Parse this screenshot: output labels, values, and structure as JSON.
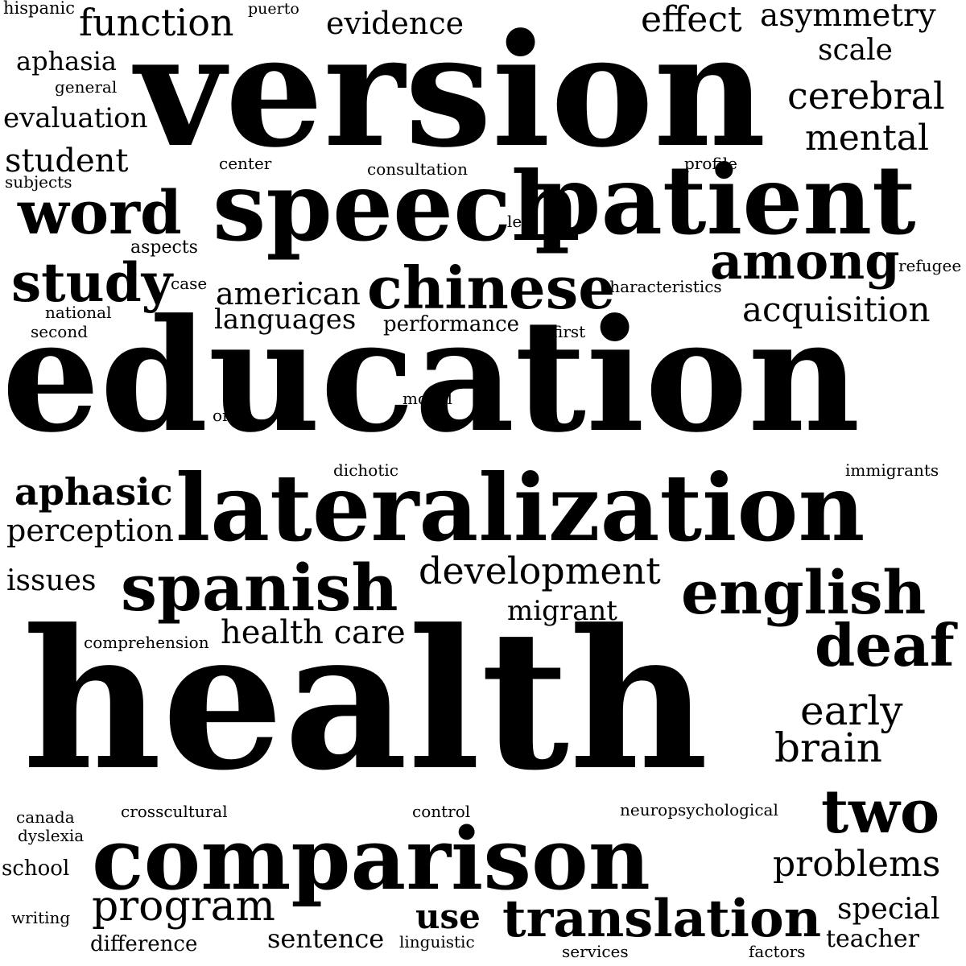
{
  "cloud": {
    "background": "#ffffff",
    "text_color": "#000000",
    "words": {
      "hispanic": "hispanic",
      "function": "function",
      "puerto": "puerto",
      "evidence": "evidence",
      "effect": "effect",
      "asymmetry": "asymmetry",
      "aphasia": "aphasia",
      "version": "version",
      "scale": "scale",
      "general": "general",
      "cerebral": "cerebral",
      "evaluation": "evaluation",
      "mental": "mental",
      "student": "student",
      "center": "center",
      "consultation": "consultation",
      "profile": "profile",
      "subjects": "subjects",
      "speech": "speech",
      "patient": "patient",
      "word": "word",
      "left": "left",
      "aspects": "aspects",
      "among": "among",
      "study": "study",
      "refugee": "refugee",
      "case": "case",
      "chinese": "chinese",
      "american": "american",
      "characteristics": "characteristics",
      "national": "national",
      "acquisition": "acquisition",
      "languages": "languages",
      "second": "second",
      "performance": "performance",
      "first": "first",
      "education": "education",
      "model": "model",
      "one": "one",
      "dichotic": "dichotic",
      "immigrants": "immigrants",
      "aphasic": "aphasic",
      "lateralization": "lateralization",
      "perception": "perception",
      "development": "development",
      "issues": "issues",
      "spanish": "spanish",
      "english": "english",
      "migrant": "migrant",
      "comprehension": "comprehension",
      "health_care": "health care",
      "deaf": "deaf",
      "health": "health",
      "early": "early",
      "brain": "brain",
      "canada": "canada",
      "crosscultural": "crosscultural",
      "control": "control",
      "neuropsychological": "neuropsychological",
      "two": "two",
      "dyslexia": "dyslexia",
      "comparison": "comparison",
      "school": "school",
      "problems": "problems",
      "program": "program",
      "writing": "writing",
      "use": "use",
      "translation": "translation",
      "special": "special",
      "difference": "difference",
      "sentence": "sentence",
      "linguistic": "linguistic",
      "services": "services",
      "factors": "factors",
      "teacher": "teacher"
    }
  }
}
